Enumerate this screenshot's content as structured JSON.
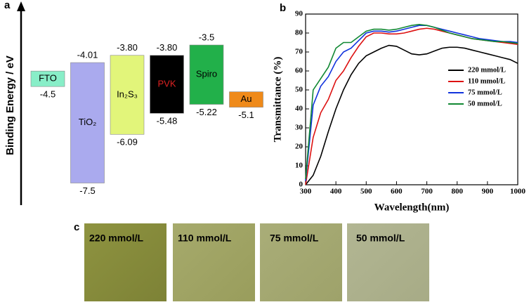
{
  "chart_data": [
    {
      "type": "energy-levels",
      "panel": "a",
      "ylabel": "Binding Energy / eV",
      "ylim": [
        -2.4,
        -8.1
      ],
      "categories": [
        "FTO",
        "TiO₂",
        "In₂S₃",
        "PVK",
        "Spiro",
        "Au"
      ],
      "colors": [
        "#88eec8",
        "#aaaaee",
        "#e2f57a",
        "#000000",
        "#22b04a",
        "#ef8a1a"
      ],
      "label_colors": [
        "#000000",
        "#000000",
        "#000000",
        "#dd2222",
        "#000000",
        "#000000"
      ],
      "series": [
        {
          "values": [
            -4.5,
            -4.01,
            -3.8,
            -3.8,
            -3.5,
            -5.1
          ],
          "value_labels": [
            "-4.5",
            "-4.01",
            "-3.80",
            "-3.80",
            "-3.5",
            "-5.1"
          ]
        },
        {
          "values": [
            null,
            -7.5,
            -6.09,
            -5.48,
            -5.22,
            null
          ],
          "value_labels": [
            null,
            "-7.5",
            "-6.09",
            "-5.48",
            "-5.22",
            null
          ]
        }
      ]
    },
    {
      "type": "line",
      "panel": "b",
      "xlabel": "Wavelength(nm)",
      "ylabel": "Transmittance (%)",
      "x": [
        300,
        325,
        350,
        375,
        400,
        425,
        450,
        475,
        500,
        525,
        550,
        575,
        600,
        625,
        650,
        675,
        700,
        725,
        750,
        775,
        800,
        825,
        850,
        875,
        900,
        925,
        950,
        975,
        1000
      ],
      "xlim": [
        300,
        1000
      ],
      "xticks": [
        300,
        400,
        500,
        600,
        700,
        800,
        900,
        1000
      ],
      "ylim": [
        0,
        90
      ],
      "yticks": [
        0,
        10,
        20,
        30,
        40,
        50,
        60,
        70,
        80,
        90
      ],
      "series": [
        {
          "name": "220 mmol/L",
          "color": "#000000",
          "values": [
            0,
            5,
            15,
            28,
            40,
            50,
            58,
            64,
            68,
            70,
            72,
            73.5,
            73,
            71,
            69,
            68.5,
            69,
            70.5,
            72,
            72.5,
            72.5,
            72,
            71,
            70,
            69,
            68,
            67,
            66,
            64
          ]
        },
        {
          "name": "110 mmol/L",
          "color": "#dd1111",
          "values": [
            0,
            25,
            38,
            45,
            55,
            60,
            67,
            73,
            78,
            80,
            80,
            79.5,
            79.5,
            80,
            81,
            82,
            82.5,
            82,
            81,
            80,
            79,
            78,
            77,
            76.5,
            76,
            75.5,
            75,
            74.5,
            74
          ]
        },
        {
          "name": "75 mmol/L",
          "color": "#1133dd",
          "values": [
            2,
            42,
            52,
            57,
            65,
            70,
            72,
            76,
            80,
            81,
            81,
            80.5,
            81,
            82,
            83,
            84,
            84,
            83,
            82,
            81,
            80,
            79,
            78,
            77,
            76.5,
            76,
            75.5,
            75.5,
            75
          ]
        },
        {
          "name": "50 mmol/L",
          "color": "#118833",
          "values": [
            3,
            50,
            56,
            62,
            72,
            75,
            75,
            78,
            81,
            82,
            82,
            81.5,
            82,
            83,
            84,
            84.5,
            84,
            83,
            81.5,
            80,
            79,
            78,
            77,
            76.5,
            76,
            75.5,
            75.5,
            75,
            74.5
          ]
        }
      ]
    }
  ],
  "photos": {
    "panel": "c",
    "labels": [
      "220 mmol/L",
      "110 mmol/L",
      "75 mmol/L",
      "50 mmol/L"
    ]
  }
}
